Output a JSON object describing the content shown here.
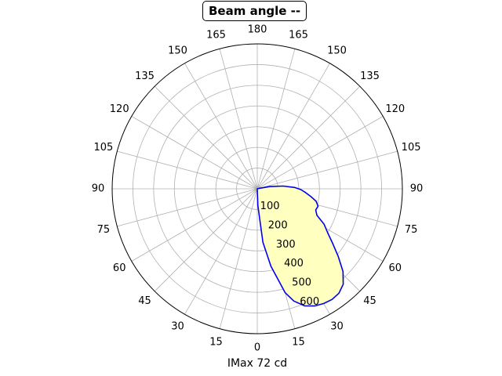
{
  "chart_data": {
    "type": "polar",
    "title": "Beam angle --",
    "xlabel": "IMax 72 cd",
    "angle_tick_labels": [
      "0",
      "15",
      "30",
      "45",
      "60",
      "75",
      "90",
      "105",
      "120",
      "135",
      "150",
      "165",
      "180",
      "165",
      "150",
      "135",
      "120",
      "105",
      "90",
      "75",
      "60",
      "45",
      "30",
      "15"
    ],
    "radial_tick_labels": [
      "100",
      "200",
      "300",
      "400",
      "500",
      "600"
    ],
    "rlim": [
      0,
      700
    ],
    "grid": true,
    "series": [
      {
        "color": "#0000ee",
        "fill": "#ffffc0",
        "points": [
          {
            "angle": 0,
            "r": 0
          },
          {
            "angle": 2,
            "r": 80
          },
          {
            "angle": 6,
            "r": 260
          },
          {
            "angle": 10,
            "r": 380
          },
          {
            "angle": 15,
            "r": 520
          },
          {
            "angle": 18,
            "r": 570
          },
          {
            "angle": 22,
            "r": 610
          },
          {
            "angle": 26,
            "r": 630
          },
          {
            "angle": 30,
            "r": 640
          },
          {
            "angle": 34,
            "r": 645
          },
          {
            "angle": 38,
            "r": 640
          },
          {
            "angle": 42,
            "r": 620
          },
          {
            "angle": 46,
            "r": 575
          },
          {
            "angle": 50,
            "r": 510
          },
          {
            "angle": 54,
            "r": 450
          },
          {
            "angle": 58,
            "r": 400
          },
          {
            "angle": 62,
            "r": 365
          },
          {
            "angle": 66,
            "r": 315
          },
          {
            "angle": 70,
            "r": 300
          },
          {
            "angle": 74,
            "r": 305
          },
          {
            "angle": 78,
            "r": 290
          },
          {
            "angle": 82,
            "r": 260
          },
          {
            "angle": 86,
            "r": 230
          },
          {
            "angle": 89,
            "r": 210
          },
          {
            "angle": 92,
            "r": 180
          },
          {
            "angle": 96,
            "r": 125
          },
          {
            "angle": 100,
            "r": 60
          },
          {
            "angle": 104,
            "r": 10
          },
          {
            "angle": 105,
            "r": 0
          }
        ]
      }
    ]
  }
}
